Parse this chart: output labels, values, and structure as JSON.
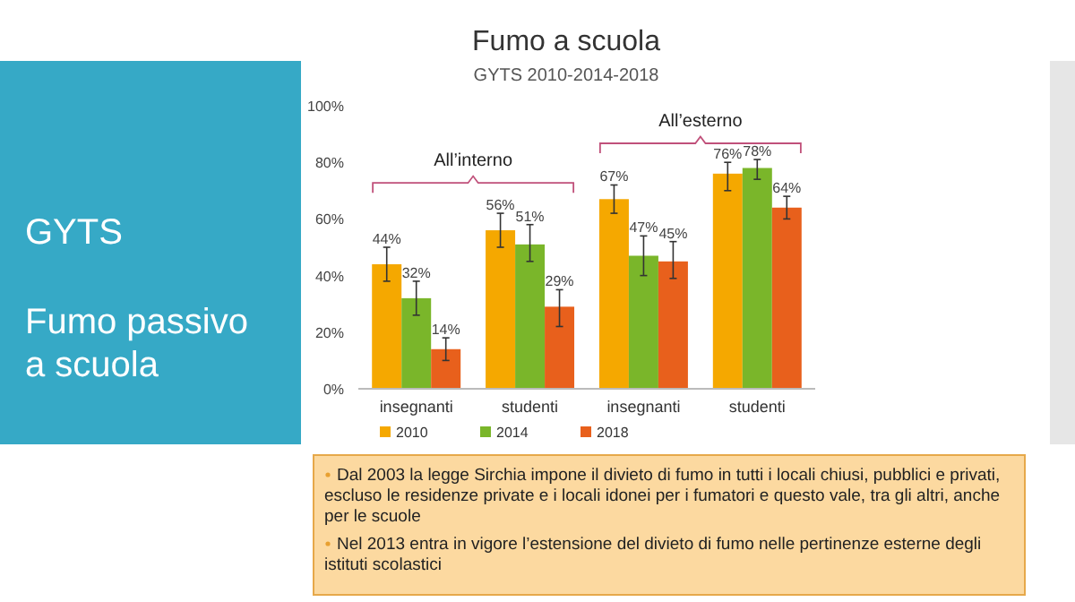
{
  "chart_data": {
    "type": "bar",
    "title": "Fumo a scuola",
    "subtitle": "GYTS 2010-2014-2018",
    "categories": [
      "insegnanti",
      "studenti",
      "insegnanti",
      "studenti"
    ],
    "series": [
      {
        "name": "2010",
        "color": "#f5a800",
        "values": [
          44,
          56,
          67,
          76
        ],
        "value_labels": [
          "44%",
          "56%",
          "67%",
          "76%"
        ],
        "errors": [
          [
            38,
            50
          ],
          [
            50,
            62
          ],
          [
            62,
            72
          ],
          [
            70,
            80
          ]
        ]
      },
      {
        "name": "2014",
        "color": "#7ab62a",
        "values": [
          32,
          51,
          47,
          78
        ],
        "value_labels": [
          "32%",
          "51%",
          "47%",
          "78%"
        ],
        "errors": [
          [
            26,
            38
          ],
          [
            45,
            58
          ],
          [
            40,
            54
          ],
          [
            74,
            81
          ]
        ]
      },
      {
        "name": "2018",
        "color": "#e8601c",
        "values": [
          14,
          29,
          45,
          64
        ],
        "value_labels": [
          "14%",
          "29%",
          "45%",
          "64%"
        ],
        "errors": [
          [
            10,
            18
          ],
          [
            22,
            35
          ],
          [
            39,
            52
          ],
          [
            60,
            68
          ]
        ]
      }
    ],
    "ylim": [
      0,
      100
    ],
    "yticks": [
      {
        "value": 0,
        "label": "0%"
      },
      {
        "value": 20,
        "label": "20%"
      },
      {
        "value": 40,
        "label": "40%"
      },
      {
        "value": 60,
        "label": "60%"
      },
      {
        "value": 80,
        "label": "80%"
      },
      {
        "value": 100,
        "label": "100%"
      }
    ],
    "grid": false,
    "legend": "bottom",
    "annotations": [
      "All’interno",
      "All’esterno",
      "GYTS",
      "Fumo passivo a scuola",
      "Dal 2003 la legge Sirchia impone il divieto di fumo in tutti i locali chiusi, pubblici e privati, escluso le residenze private e i locali idonei per i fumatori e questo vale, tra gli altri, anche per le scuole",
      "Nel 2013 entra in vigore l’estensione del divieto di fumo nelle pertinenze esterne degli istituti scolastici"
    ]
  }
}
